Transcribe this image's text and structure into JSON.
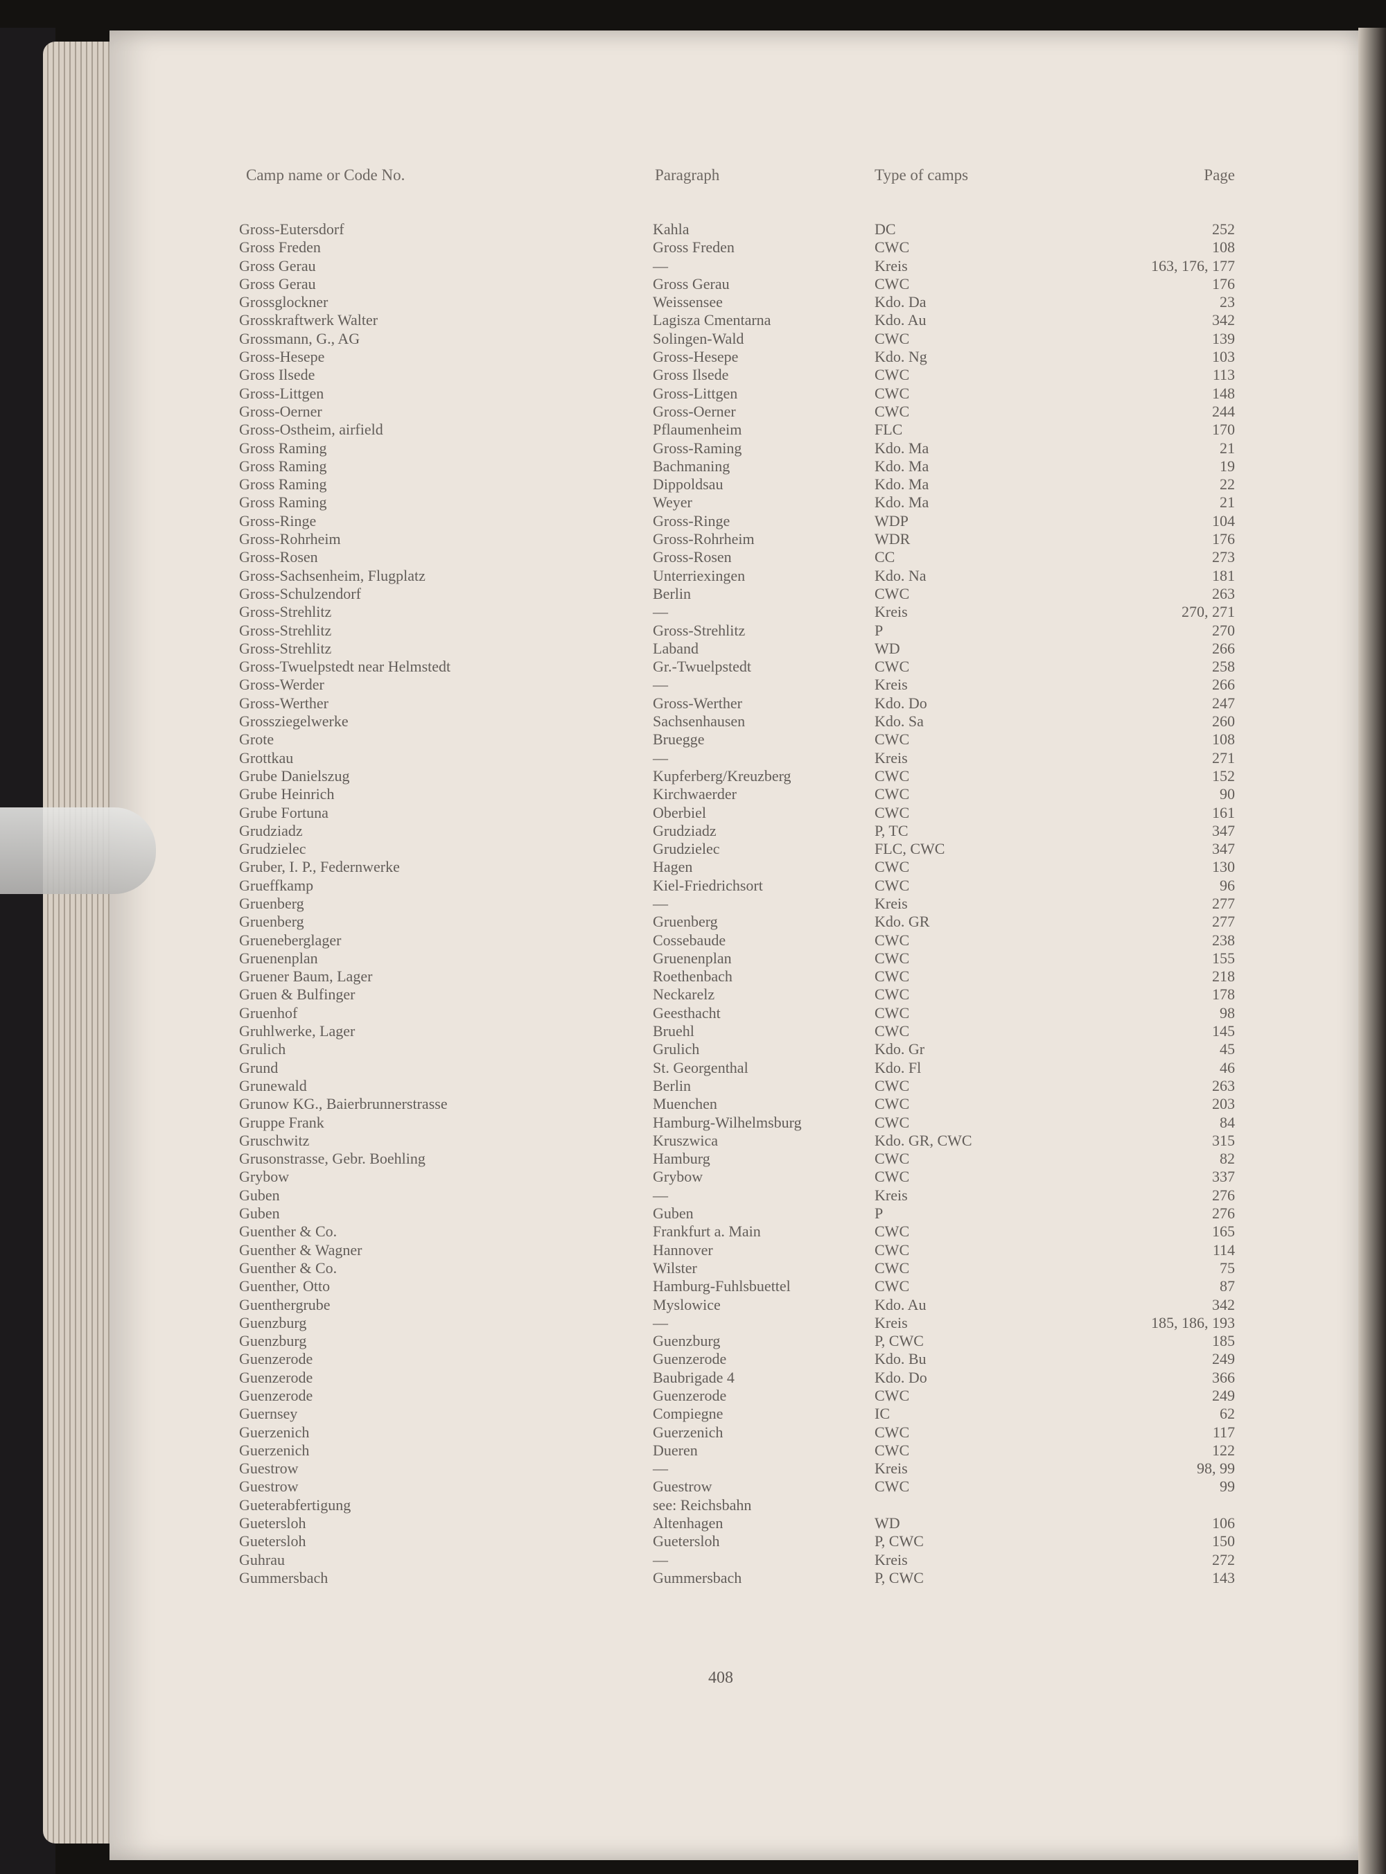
{
  "headers": {
    "name": "Camp name or Code No.",
    "paragraph": "Paragraph",
    "type": "Type of camps",
    "page": "Page"
  },
  "rows": [
    [
      "Gross-Eutersdorf",
      "Kahla",
      "DC",
      "252"
    ],
    [
      "Gross Freden",
      "Gross Freden",
      "CWC",
      "108"
    ],
    [
      "Gross Gerau",
      "—",
      "Kreis",
      "163, 176, 177"
    ],
    [
      "Gross Gerau",
      "Gross Gerau",
      "CWC",
      "176"
    ],
    [
      "Grossglockner",
      "Weissensee",
      "Kdo. Da",
      "23"
    ],
    [
      "Grosskraftwerk Walter",
      "Lagisza Cmentarna",
      "Kdo. Au",
      "342"
    ],
    [
      "Grossmann, G., AG",
      "Solingen-Wald",
      "CWC",
      "139"
    ],
    [
      "Gross-Hesepe",
      "Gross-Hesepe",
      "Kdo. Ng",
      "103"
    ],
    [
      "Gross Ilsede",
      "Gross Ilsede",
      "CWC",
      "113"
    ],
    [
      "Gross-Littgen",
      "Gross-Littgen",
      "CWC",
      "148"
    ],
    [
      "Gross-Oerner",
      "Gross-Oerner",
      "CWC",
      "244"
    ],
    [
      "Gross-Ostheim, airfield",
      "Pflaumenheim",
      "FLC",
      "170"
    ],
    [
      "Gross Raming",
      "Gross-Raming",
      "Kdo. Ma",
      "21"
    ],
    [
      "Gross Raming",
      "Bachmaning",
      "Kdo. Ma",
      "19"
    ],
    [
      "Gross Raming",
      "Dippoldsau",
      "Kdo. Ma",
      "22"
    ],
    [
      "Gross Raming",
      "Weyer",
      "Kdo. Ma",
      "21"
    ],
    [
      "Gross-Ringe",
      "Gross-Ringe",
      "WDP",
      "104"
    ],
    [
      "Gross-Rohrheim",
      "Gross-Rohrheim",
      "WDR",
      "176"
    ],
    [
      "Gross-Rosen",
      "Gross-Rosen",
      "CC",
      "273"
    ],
    [
      "Gross-Sachsenheim, Flugplatz",
      "Unterriexingen",
      "Kdo. Na",
      "181"
    ],
    [
      "Gross-Schulzendorf",
      "Berlin",
      "CWC",
      "263"
    ],
    [
      "Gross-Strehlitz",
      "—",
      "Kreis",
      "270, 271"
    ],
    [
      "Gross-Strehlitz",
      "Gross-Strehlitz",
      "P",
      "270"
    ],
    [
      "Gross-Strehlitz",
      "Laband",
      "WD",
      "266"
    ],
    [
      "Gross-Twuelpstedt near Helmstedt",
      "Gr.-Twuelpstedt",
      "CWC",
      "258"
    ],
    [
      "Gross-Werder",
      "—",
      "Kreis",
      "266"
    ],
    [
      "Gross-Werther",
      "Gross-Werther",
      "Kdo. Do",
      "247"
    ],
    [
      "Grossziegelwerke",
      "Sachsenhausen",
      "Kdo. Sa",
      "260"
    ],
    [
      "Grote",
      "Bruegge",
      "CWC",
      "108"
    ],
    [
      "Grottkau",
      "—",
      "Kreis",
      "271"
    ],
    [
      "Grube Danielszug",
      "Kupferberg/Kreuzberg",
      "CWC",
      "152"
    ],
    [
      "Grube Heinrich",
      "Kirchwaerder",
      "CWC",
      "90"
    ],
    [
      "Grube Fortuna",
      "Oberbiel",
      "CWC",
      "161"
    ],
    [
      "Grudziadz",
      "Grudziadz",
      "P, TC",
      "347"
    ],
    [
      "Grudzielec",
      "Grudzielec",
      "FLC, CWC",
      "347"
    ],
    [
      "Gruber, I. P., Federnwerke",
      "Hagen",
      "CWC",
      "130"
    ],
    [
      "Grueffkamp",
      "Kiel-Friedrichsort",
      "CWC",
      "96"
    ],
    [
      "Gruenberg",
      "—",
      "Kreis",
      "277"
    ],
    [
      "Gruenberg",
      "Gruenberg",
      "Kdo. GR",
      "277"
    ],
    [
      "Grueneberglager",
      "Cossebaude",
      "CWC",
      "238"
    ],
    [
      "Gruenenplan",
      "Gruenenplan",
      "CWC",
      "155"
    ],
    [
      "Gruener Baum, Lager",
      "Roethenbach",
      "CWC",
      "218"
    ],
    [
      "Gruen & Bulfinger",
      "Neckarelz",
      "CWC",
      "178"
    ],
    [
      "Gruenhof",
      "Geesthacht",
      "CWC",
      "98"
    ],
    [
      "Gruhlwerke, Lager",
      "Bruehl",
      "CWC",
      "145"
    ],
    [
      "Grulich",
      "Grulich",
      "Kdo. Gr",
      "45"
    ],
    [
      "Grund",
      "St. Georgenthal",
      "Kdo. Fl",
      "46"
    ],
    [
      "Grunewald",
      "Berlin",
      "CWC",
      "263"
    ],
    [
      "Grunow KG., Baierbrunnerstrasse",
      "Muenchen",
      "CWC",
      "203"
    ],
    [
      "Gruppe Frank",
      "Hamburg-Wilhelmsburg",
      "CWC",
      "84"
    ],
    [
      "Gruschwitz",
      "Kruszwica",
      "Kdo. GR, CWC",
      "315"
    ],
    [
      "Grusonstrasse, Gebr. Boehling",
      "Hamburg",
      "CWC",
      "82"
    ],
    [
      "Grybow",
      "Grybow",
      "CWC",
      "337"
    ],
    [
      "Guben",
      "—",
      "Kreis",
      "276"
    ],
    [
      "Guben",
      "Guben",
      "P",
      "276"
    ],
    [
      "Guenther & Co.",
      "Frankfurt a. Main",
      "CWC",
      "165"
    ],
    [
      "Guenther & Wagner",
      "Hannover",
      "CWC",
      "114"
    ],
    [
      "Guenther & Co.",
      "Wilster",
      "CWC",
      "75"
    ],
    [
      "Guenther, Otto",
      "Hamburg-Fuhlsbuettel",
      "CWC",
      "87"
    ],
    [
      "Guenthergrube",
      "Myslowice",
      "Kdo. Au",
      "342"
    ],
    [
      "Guenzburg",
      "—",
      "Kreis",
      "185, 186, 193"
    ],
    [
      "Guenzburg",
      "Guenzburg",
      "P, CWC",
      "185"
    ],
    [
      "Guenzerode",
      "Guenzerode",
      "Kdo. Bu",
      "249"
    ],
    [
      "Guenzerode",
      "Baubrigade 4",
      "Kdo. Do",
      "366"
    ],
    [
      "Guenzerode",
      "Guenzerode",
      "CWC",
      "249"
    ],
    [
      "Guernsey",
      "Compiegne",
      "IC",
      "62"
    ],
    [
      "Guerzenich",
      "Guerzenich",
      "CWC",
      "117"
    ],
    [
      "Guerzenich",
      "Dueren",
      "CWC",
      "122"
    ],
    [
      "Guestrow",
      "—",
      "Kreis",
      "98, 99"
    ],
    [
      "Guestrow",
      "Guestrow",
      "CWC",
      "99"
    ],
    [
      "Gueterabfertigung",
      "see: Reichsbahn",
      "",
      ""
    ],
    [
      "Guetersloh",
      "Altenhagen",
      "WD",
      "106"
    ],
    [
      "Guetersloh",
      "Guetersloh",
      "P, CWC",
      "150"
    ],
    [
      "Guhrau",
      "—",
      "Kreis",
      "272"
    ],
    [
      "Gummersbach",
      "Gummersbach",
      "P, CWC",
      "143"
    ]
  ],
  "page_number": "408"
}
